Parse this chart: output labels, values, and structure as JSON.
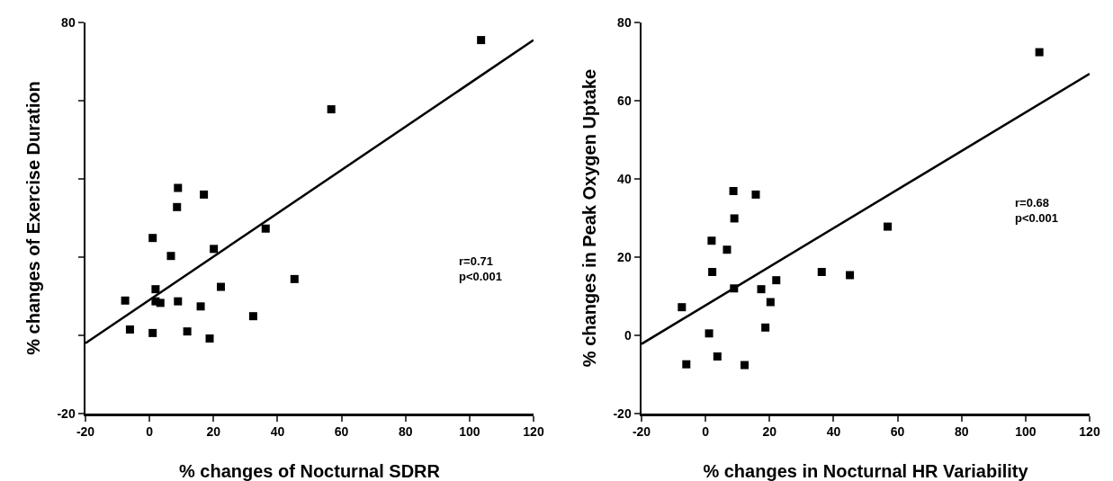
{
  "chart_data": [
    {
      "type": "scatter",
      "xlabel": "% changes of Nocturnal SDRR",
      "ylabel": "% changes of Exercise Duration",
      "annotations": [
        "r=0.71\np<0.001"
      ],
      "xlim": [
        -20,
        120
      ],
      "xticks": [
        -20,
        0,
        20,
        40,
        60,
        80,
        100,
        120
      ],
      "ylim": [
        -20,
        80
      ],
      "yticks": [
        -20,
        {
          "value": 0,
          "label": null
        },
        {
          "value": 20,
          "label": null
        },
        {
          "value": 40,
          "label": null
        },
        {
          "value": 60,
          "label": null
        },
        80
      ],
      "series": [
        {
          "color": "#000000",
          "marker": "square",
          "x": [
            -7.6,
            -6.1,
            1.0,
            1.9,
            1.9,
            3.4,
            1.0,
            6.7,
            8.6,
            8.9,
            8.9,
            11.8,
            16.0,
            17.0,
            18.8,
            20.1,
            22.3,
            32.4,
            36.3,
            45.3,
            56.8,
            103.6
          ],
          "values": [
            8.9,
            1.5,
            24.9,
            11.8,
            8.7,
            8.3,
            0.6,
            20.3,
            32.8,
            37.7,
            8.7,
            1.0,
            7.4,
            36.0,
            -0.8,
            22.1,
            12.4,
            4.9,
            27.3,
            14.4,
            57.8,
            75.5
          ]
        },
        {
          "type": "line",
          "color": "#000000",
          "line_style": "solid",
          "x": [
            -20,
            120
          ],
          "values": [
            -2,
            75.5
          ]
        }
      ]
    },
    {
      "type": "scatter",
      "xlabel": "% changes in Nocturnal HR Variability",
      "ylabel": "% changes in Peak Oxygen Uptake",
      "annotations": [
        "r=0.68\np<0.001"
      ],
      "xlim": [
        -20,
        120
      ],
      "xticks": [
        -20,
        0,
        20,
        40,
        60,
        80,
        100,
        120
      ],
      "ylim": [
        -20,
        80
      ],
      "yticks": [
        -20,
        0,
        20,
        40,
        60,
        80
      ],
      "series": [
        {
          "color": "#000000",
          "marker": "square",
          "x": [
            -7.4,
            -6.0,
            1.1,
            1.9,
            2.1,
            3.7,
            6.7,
            8.7,
            9.0,
            8.9,
            12.2,
            15.7,
            17.4,
            18.7,
            20.3,
            22.1,
            36.3,
            45.1,
            56.9,
            104.3
          ],
          "values": [
            7.2,
            -7.4,
            0.5,
            24.2,
            16.2,
            -5.4,
            21.9,
            36.9,
            29.9,
            12.0,
            -7.6,
            36.0,
            11.8,
            2.0,
            8.5,
            14.1,
            16.2,
            15.4,
            27.8,
            72.4
          ]
        },
        {
          "type": "line",
          "color": "#000000",
          "line_style": "solid",
          "x": [
            -20,
            120
          ],
          "values": [
            -2.2,
            66.9
          ]
        }
      ]
    }
  ]
}
